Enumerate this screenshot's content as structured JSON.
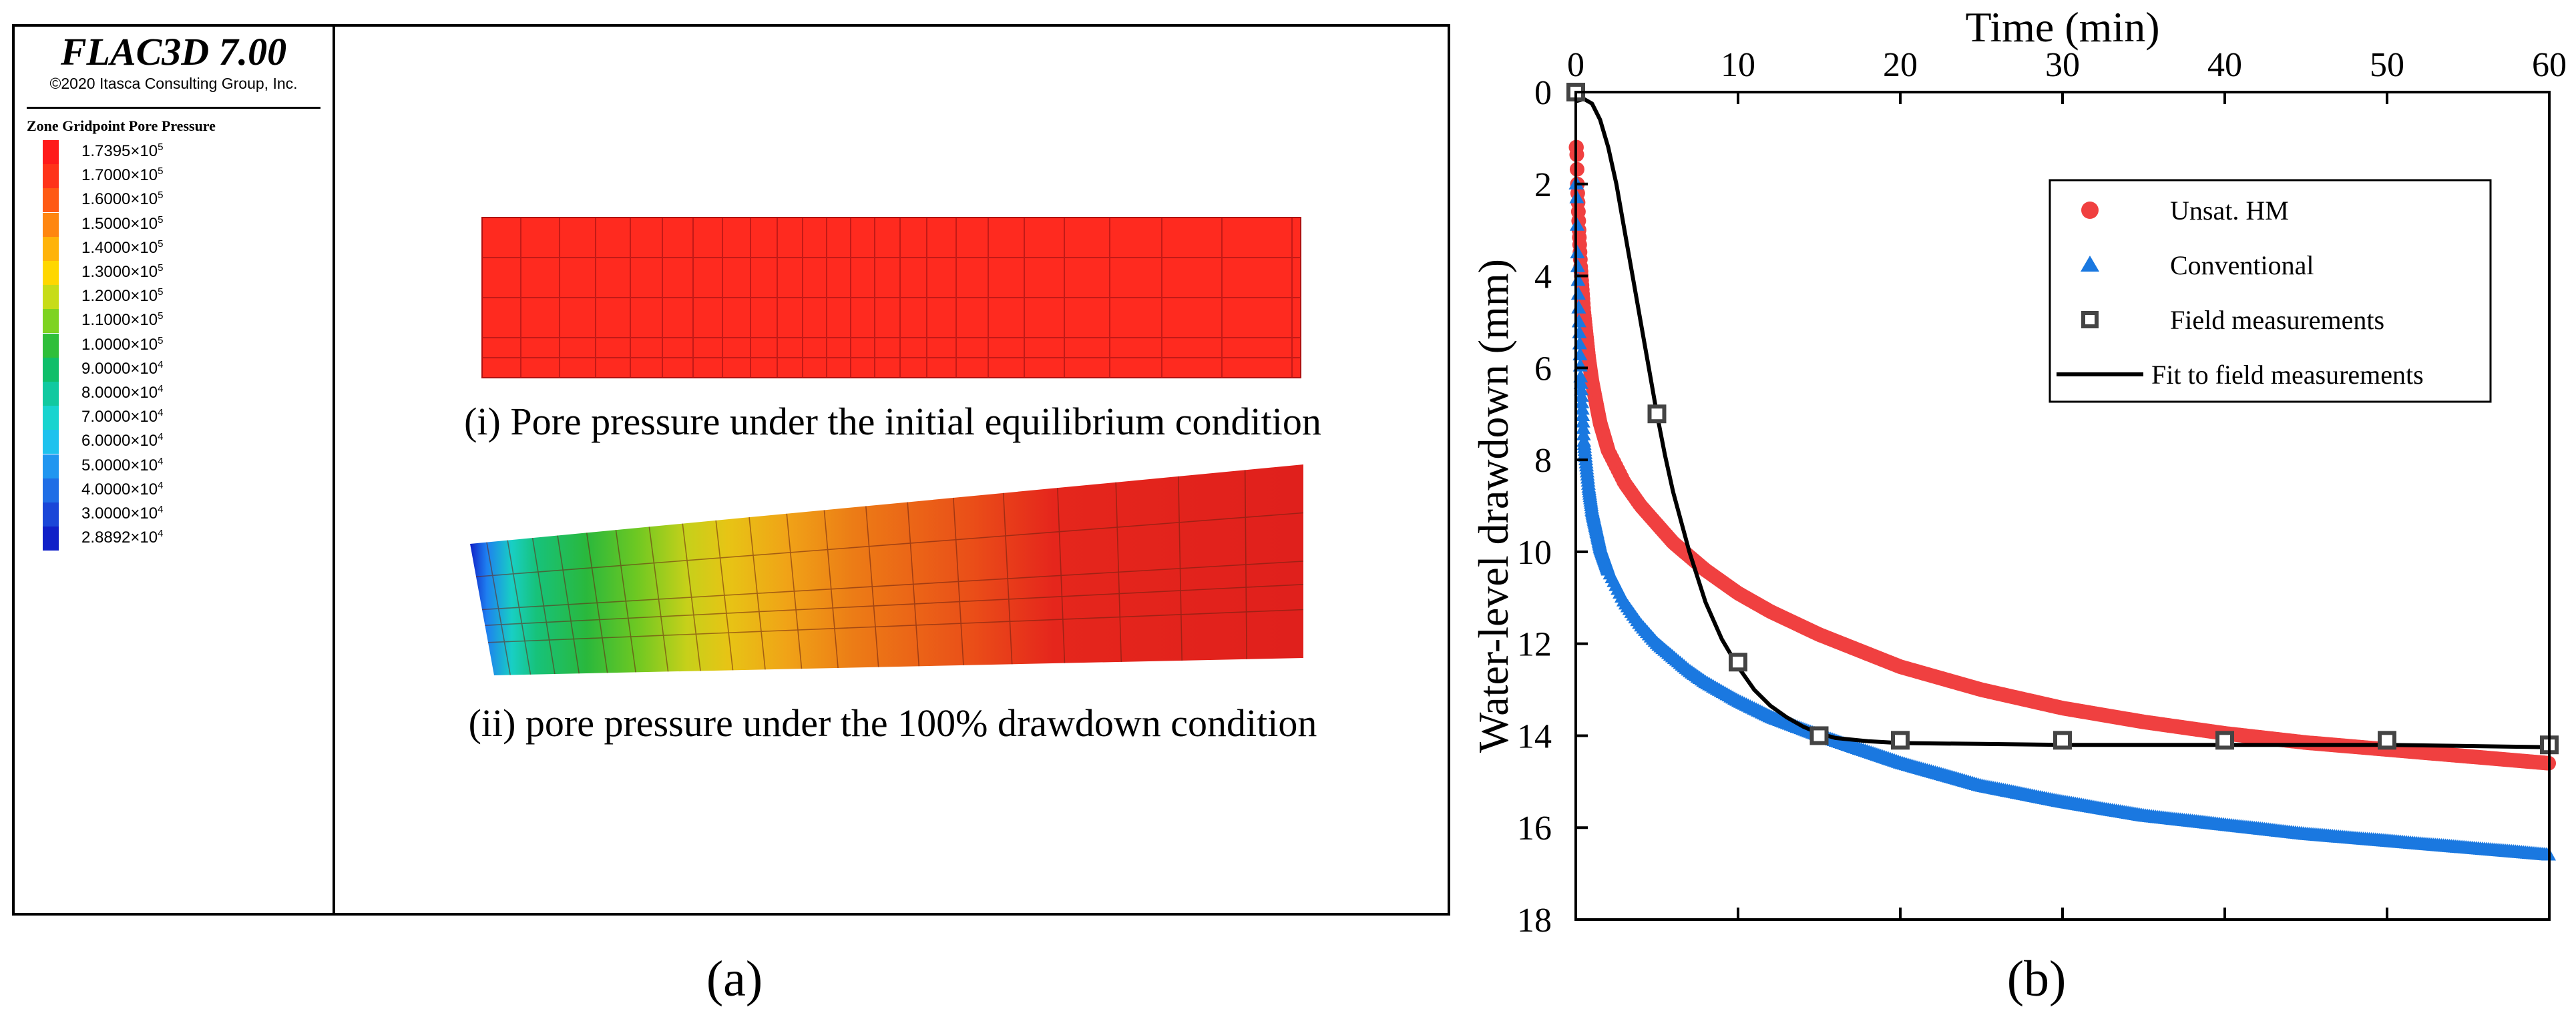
{
  "panel_a": {
    "software_title": "FLAC3D 7.00",
    "copyright": "©2020 Itasca Consulting Group, Inc.",
    "legend_title": "Zone Gridpoint Pore Pressure",
    "legend": [
      {
        "label": "1.7395×10",
        "exp": "5",
        "color": "#ff1a1a"
      },
      {
        "label": "1.7000×10",
        "exp": "5",
        "color": "#ff3319"
      },
      {
        "label": "1.6000×10",
        "exp": "5",
        "color": "#ff5a14"
      },
      {
        "label": "1.5000×10",
        "exp": "5",
        "color": "#ff8610"
      },
      {
        "label": "1.4000×10",
        "exp": "5",
        "color": "#ffb30a"
      },
      {
        "label": "1.3000×10",
        "exp": "5",
        "color": "#ffd700"
      },
      {
        "label": "1.2000×10",
        "exp": "5",
        "color": "#c7dc18"
      },
      {
        "label": "1.1000×10",
        "exp": "5",
        "color": "#7ed321"
      },
      {
        "label": "1.0000×10",
        "exp": "5",
        "color": "#2fbf3a"
      },
      {
        "label": "9.0000×10",
        "exp": "4",
        "color": "#0fbf6a"
      },
      {
        "label": "8.0000×10",
        "exp": "4",
        "color": "#11c9a0"
      },
      {
        "label": "7.0000×10",
        "exp": "4",
        "color": "#18d4cf"
      },
      {
        "label": "6.0000×10",
        "exp": "4",
        "color": "#1ec2ee"
      },
      {
        "label": "5.0000×10",
        "exp": "4",
        "color": "#2096f0"
      },
      {
        "label": "4.0000×10",
        "exp": "4",
        "color": "#1f6ee6"
      },
      {
        "label": "3.0000×10",
        "exp": "4",
        "color": "#1a46d8"
      },
      {
        "label": "2.8892×10",
        "exp": "4",
        "color": "#1020c8"
      }
    ],
    "caption_initial": "(i) Pore pressure under the initial equilibrium condition",
    "caption_drawdown": "(ii) pore pressure under the 100% drawdown condition",
    "label": "(a)"
  },
  "panel_b_label": "(b)",
  "chart_data": {
    "type": "scatter",
    "title": "",
    "xlabel": "Time (min)",
    "ylabel": "Water-level drawdown (mm)",
    "xlim": [
      0,
      60
    ],
    "ylim": [
      18,
      0
    ],
    "x_axis_position": "top",
    "y_inverted": true,
    "xticks": [
      "0",
      "10",
      "20",
      "30",
      "40",
      "50",
      "60"
    ],
    "yticks": [
      "0",
      "2",
      "4",
      "6",
      "8",
      "10",
      "12",
      "14",
      "16",
      "18"
    ],
    "legend_position": "top-right",
    "series": [
      {
        "name": "Unsat. HM",
        "marker": "circle",
        "style": "dense-markers",
        "color": "#f04040",
        "x": [
          0.05,
          0.1,
          0.2,
          0.3,
          0.5,
          0.8,
          1,
          1.5,
          2,
          3,
          4,
          5,
          6,
          7,
          8,
          10,
          12,
          15,
          20,
          25,
          30,
          35,
          40,
          45,
          50,
          55,
          60
        ],
        "y": [
          1.2,
          2.0,
          3.0,
          3.8,
          4.8,
          5.8,
          6.3,
          7.2,
          7.8,
          8.5,
          9.0,
          9.4,
          9.8,
          10.1,
          10.4,
          10.9,
          11.3,
          11.8,
          12.5,
          13.0,
          13.4,
          13.7,
          13.95,
          14.15,
          14.3,
          14.45,
          14.6
        ]
      },
      {
        "name": "Conventional",
        "marker": "triangle",
        "style": "dense-markers",
        "color": "#1a78e0",
        "x": [
          0.05,
          0.1,
          0.2,
          0.3,
          0.5,
          0.8,
          1,
          1.5,
          2,
          3,
          4,
          5,
          6,
          7,
          8,
          10,
          12,
          15,
          20,
          25,
          30,
          35,
          40,
          45,
          50,
          55,
          60
        ],
        "y": [
          2.0,
          3.5,
          5.0,
          6.2,
          7.6,
          8.6,
          9.1,
          9.9,
          10.4,
          11.1,
          11.6,
          12.0,
          12.3,
          12.6,
          12.85,
          13.25,
          13.6,
          14.0,
          14.6,
          15.1,
          15.45,
          15.75,
          15.95,
          16.15,
          16.3,
          16.45,
          16.6
        ]
      },
      {
        "name": "Field measurements",
        "marker": "square",
        "style": "markers",
        "color": "#444444",
        "x": [
          0,
          5,
          10,
          15,
          20,
          30,
          40,
          50,
          60
        ],
        "y": [
          0,
          7,
          12.4,
          14,
          14.1,
          14.1,
          14.1,
          14.1,
          14.2
        ]
      },
      {
        "name": "Fit to field measurements",
        "marker": "none",
        "style": "line",
        "color": "#000000",
        "x": [
          0,
          0.5,
          1,
          1.5,
          2,
          2.5,
          3,
          3.5,
          4,
          4.5,
          5,
          5.5,
          6,
          7,
          8,
          9,
          10,
          11,
          12,
          13,
          14,
          15,
          16,
          18,
          20,
          25,
          30,
          40,
          50,
          60
        ],
        "y": [
          0.2,
          0.15,
          0.25,
          0.6,
          1.2,
          2.0,
          3.0,
          4.0,
          5.0,
          6.0,
          7.0,
          7.9,
          8.7,
          10.0,
          11.1,
          11.9,
          12.5,
          13.0,
          13.35,
          13.6,
          13.8,
          13.95,
          14.05,
          14.12,
          14.16,
          14.18,
          14.2,
          14.2,
          14.2,
          14.25
        ]
      }
    ]
  }
}
